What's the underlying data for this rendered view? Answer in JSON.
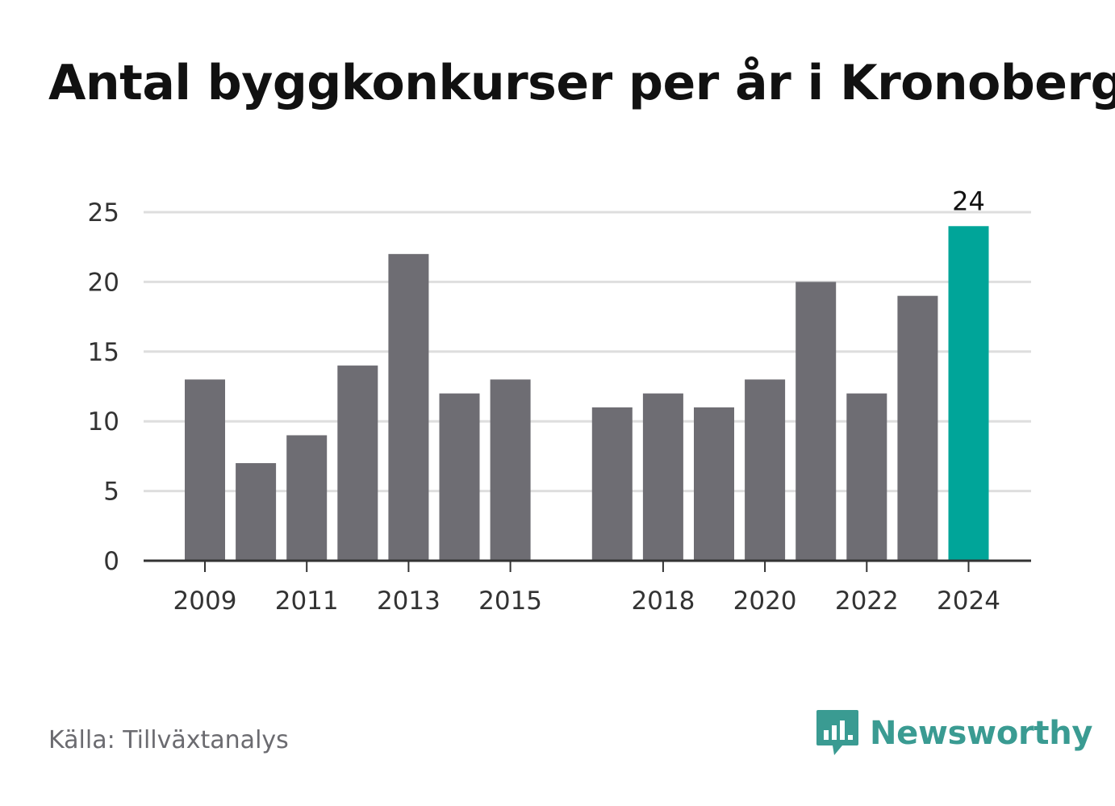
{
  "title": "Antal byggkonkurser per år i Kronoberg",
  "source": "Källa: Tillväxtanalys",
  "brand": {
    "name": "Newsworthy",
    "icon": "newsworthy-logo-icon",
    "color": "#3a9b92"
  },
  "chart_data": {
    "type": "bar",
    "title": "Antal byggkonkurser per år i Kronoberg",
    "categories": [
      "2009",
      "2010",
      "2011",
      "2012",
      "2013",
      "2014",
      "2015",
      "2016",
      "2017",
      "2018",
      "2019",
      "2020",
      "2021",
      "2022",
      "2023",
      "2024"
    ],
    "values": [
      13,
      7,
      9,
      14,
      22,
      12,
      13,
      null,
      11,
      12,
      11,
      13,
      20,
      12,
      19,
      24
    ],
    "x_tick_labels": [
      "2009",
      "2011",
      "2013",
      "2015",
      "2018",
      "2020",
      "2022",
      "2024"
    ],
    "y_ticks": [
      0,
      5,
      10,
      15,
      20,
      25
    ],
    "ylim": [
      0,
      25
    ],
    "grid": true,
    "highlight": {
      "category": "2024",
      "value_label": "24"
    },
    "colors": {
      "bar": "#6e6d73",
      "highlight": "#00a599",
      "grid": "#dedede",
      "axis": "#333333"
    },
    "xlabel": "",
    "ylabel": ""
  }
}
